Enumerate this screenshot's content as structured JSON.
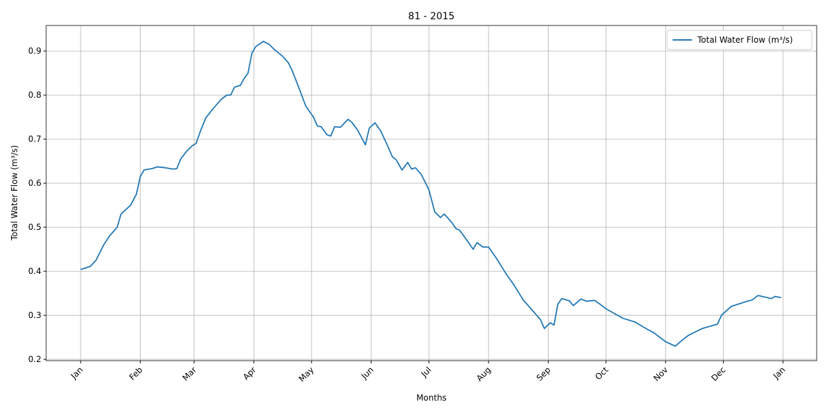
{
  "chart_data": {
    "type": "line",
    "title": "81 - 2015",
    "x_label": "Months",
    "y_label": "Total Water Flow (m³/s)",
    "x": [
      0,
      5,
      8,
      12,
      15,
      19,
      21,
      26,
      29,
      31,
      33,
      37,
      40,
      44,
      48,
      50,
      52,
      55,
      58,
      60,
      62,
      65,
      69,
      73,
      76,
      78,
      80,
      83,
      85,
      87,
      89,
      91,
      95,
      98,
      101,
      105,
      108,
      110,
      114,
      117,
      121,
      123,
      125,
      128,
      130,
      132,
      135,
      139,
      141,
      144,
      148,
      150,
      153,
      156,
      159,
      162,
      164,
      167,
      170,
      172,
      174,
      177,
      181,
      184,
      187,
      189,
      193,
      195,
      197,
      200,
      204,
      206,
      209,
      212,
      216,
      221,
      225,
      230,
      236,
      239,
      241,
      244,
      246,
      248,
      250,
      254,
      256,
      260,
      263,
      267,
      270,
      273,
      277,
      282,
      288,
      293,
      298,
      304,
      309,
      313,
      316,
      323,
      331,
      333,
      338,
      345,
      349,
      352,
      357,
      359,
      361,
      364
    ],
    "series": [
      {
        "name": "Total Water Flow (m³/s)",
        "color": "#1f77b4",
        "values": [
          0.404,
          0.411,
          0.425,
          0.46,
          0.48,
          0.5,
          0.53,
          0.55,
          0.575,
          0.615,
          0.63,
          0.633,
          0.637,
          0.635,
          0.632,
          0.633,
          0.655,
          0.672,
          0.685,
          0.69,
          0.715,
          0.748,
          0.77,
          0.79,
          0.8,
          0.8,
          0.818,
          0.822,
          0.838,
          0.85,
          0.895,
          0.91,
          0.922,
          0.915,
          0.902,
          0.888,
          0.873,
          0.855,
          0.81,
          0.775,
          0.75,
          0.73,
          0.728,
          0.71,
          0.707,
          0.728,
          0.727,
          0.745,
          0.738,
          0.72,
          0.687,
          0.725,
          0.737,
          0.718,
          0.69,
          0.66,
          0.653,
          0.63,
          0.647,
          0.632,
          0.635,
          0.62,
          0.585,
          0.535,
          0.522,
          0.53,
          0.51,
          0.497,
          0.493,
          0.475,
          0.45,
          0.465,
          0.455,
          0.455,
          0.43,
          0.395,
          0.37,
          0.335,
          0.305,
          0.29,
          0.27,
          0.283,
          0.278,
          0.325,
          0.338,
          0.333,
          0.322,
          0.337,
          0.332,
          0.334,
          0.325,
          0.315,
          0.305,
          0.293,
          0.285,
          0.272,
          0.26,
          0.24,
          0.23,
          0.245,
          0.255,
          0.27,
          0.28,
          0.3,
          0.32,
          0.33,
          0.335,
          0.345,
          0.34,
          0.338,
          0.343,
          0.34
        ]
      }
    ],
    "xlim": [
      -17.9,
      382.5
    ],
    "xticks": [
      {
        "value": 0,
        "label": "Jan"
      },
      {
        "value": 31,
        "label": "Feb"
      },
      {
        "value": 59,
        "label": "Mar"
      },
      {
        "value": 90,
        "label": "Apr"
      },
      {
        "value": 120,
        "label": "May"
      },
      {
        "value": 151,
        "label": "Jun"
      },
      {
        "value": 181,
        "label": "Jul"
      },
      {
        "value": 212,
        "label": "Aug"
      },
      {
        "value": 243,
        "label": "Sep"
      },
      {
        "value": 273,
        "label": "Oct"
      },
      {
        "value": 304,
        "label": "Nov"
      },
      {
        "value": 334,
        "label": "Dec"
      },
      {
        "value": 365,
        "label": "Jan"
      }
    ],
    "ylim": [
      0.197,
      0.958
    ],
    "yticks": [
      {
        "value": 0.2,
        "label": "0.2"
      },
      {
        "value": 0.3,
        "label": "0.3"
      },
      {
        "value": 0.4,
        "label": "0.4"
      },
      {
        "value": 0.5,
        "label": "0.5"
      },
      {
        "value": 0.6,
        "label": "0.6"
      },
      {
        "value": 0.7,
        "label": "0.7"
      },
      {
        "value": 0.8,
        "label": "0.8"
      },
      {
        "value": 0.9,
        "label": "0.9"
      }
    ],
    "grid": true,
    "legend": "upper right"
  }
}
